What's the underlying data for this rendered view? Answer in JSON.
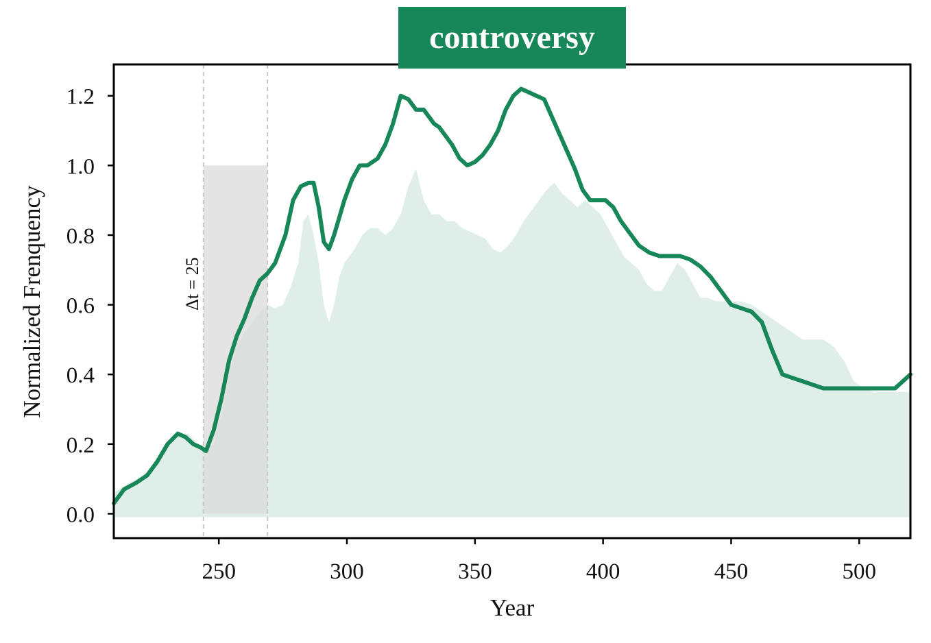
{
  "chart_data": {
    "type": "line",
    "title": "controversy",
    "xlabel": "Year",
    "ylabel": "Normalized Frenquency",
    "xlim": [
      209,
      520
    ],
    "ylim": [
      -0.07,
      1.29
    ],
    "x_ticks": [
      250,
      300,
      350,
      400,
      450,
      500
    ],
    "y_ticks": [
      "0.0",
      "0.2",
      "0.4",
      "0.6",
      "0.8",
      "1.0",
      "1.2"
    ],
    "grid": false,
    "colors": {
      "line": "#17875a",
      "area": "#dfeee8",
      "window": "#d9d9d9",
      "dashed": "#c8c8c8",
      "title_bg": "#17875a"
    },
    "window": {
      "x_start": 244,
      "x_end": 269,
      "y_top": 1.0,
      "label": "Δt = 25"
    },
    "series": [
      {
        "style": "line",
        "x": [
          209,
          213,
          218,
          222,
          226,
          230,
          234,
          237,
          240,
          243,
          245,
          248,
          251,
          254,
          257,
          260,
          263,
          266,
          269,
          272,
          276,
          279,
          282,
          285,
          287,
          289,
          291,
          293,
          295,
          297,
          299,
          302,
          305,
          308,
          312,
          315,
          318,
          321,
          324,
          327,
          330,
          332,
          334,
          336,
          338,
          341,
          344,
          347,
          350,
          353,
          356,
          359,
          362,
          365,
          368,
          371,
          374,
          377,
          380,
          383,
          386,
          389,
          392,
          395,
          398,
          401,
          404,
          407,
          410,
          414,
          418,
          422,
          426,
          430,
          434,
          438,
          442,
          446,
          450,
          454,
          458,
          462,
          466,
          470,
          474,
          478,
          482,
          486,
          490,
          494,
          498,
          502,
          506,
          510,
          514,
          520
        ],
        "values": [
          0.03,
          0.07,
          0.09,
          0.11,
          0.15,
          0.2,
          0.23,
          0.22,
          0.2,
          0.19,
          0.18,
          0.24,
          0.33,
          0.44,
          0.51,
          0.56,
          0.62,
          0.67,
          0.69,
          0.72,
          0.8,
          0.9,
          0.94,
          0.95,
          0.95,
          0.88,
          0.78,
          0.76,
          0.8,
          0.85,
          0.9,
          0.96,
          1.0,
          1.0,
          1.02,
          1.06,
          1.12,
          1.2,
          1.19,
          1.16,
          1.16,
          1.14,
          1.12,
          1.11,
          1.09,
          1.06,
          1.02,
          1.0,
          1.01,
          1.03,
          1.06,
          1.1,
          1.16,
          1.2,
          1.22,
          1.21,
          1.2,
          1.19,
          1.14,
          1.09,
          1.04,
          0.99,
          0.93,
          0.9,
          0.9,
          0.9,
          0.88,
          0.84,
          0.81,
          0.77,
          0.75,
          0.74,
          0.74,
          0.74,
          0.73,
          0.71,
          0.68,
          0.64,
          0.6,
          0.59,
          0.58,
          0.55,
          0.47,
          0.4,
          0.39,
          0.38,
          0.37,
          0.36,
          0.36,
          0.36,
          0.36,
          0.36,
          0.36,
          0.36,
          0.36,
          0.4
        ]
      },
      {
        "style": "area",
        "x": [
          209,
          213,
          218,
          222,
          226,
          230,
          234,
          238,
          242,
          245,
          248,
          251,
          254,
          257,
          260,
          263,
          266,
          269,
          272,
          275,
          278,
          281,
          283,
          285,
          287,
          289,
          291,
          293,
          295,
          297,
          299,
          301,
          303,
          306,
          309,
          312,
          315,
          318,
          321,
          324,
          327,
          330,
          333,
          336,
          339,
          342,
          345,
          348,
          351,
          354,
          357,
          360,
          363,
          366,
          369,
          372,
          375,
          378,
          381,
          384,
          387,
          390,
          393,
          396,
          399,
          402,
          405,
          408,
          411,
          414,
          417,
          420,
          423,
          426,
          429,
          432,
          435,
          438,
          441,
          444,
          447,
          450,
          454,
          458,
          462,
          466,
          470,
          474,
          478,
          482,
          486,
          490,
          494,
          498,
          502,
          506,
          510,
          514,
          520
        ],
        "values": [
          0.06,
          0.08,
          0.1,
          0.12,
          0.15,
          0.19,
          0.23,
          0.23,
          0.2,
          0.19,
          0.2,
          0.28,
          0.4,
          0.48,
          0.52,
          0.55,
          0.58,
          0.6,
          0.59,
          0.6,
          0.65,
          0.72,
          0.84,
          0.86,
          0.8,
          0.72,
          0.6,
          0.55,
          0.6,
          0.68,
          0.72,
          0.74,
          0.76,
          0.8,
          0.82,
          0.82,
          0.8,
          0.82,
          0.86,
          0.94,
          0.99,
          0.9,
          0.86,
          0.86,
          0.84,
          0.84,
          0.82,
          0.81,
          0.8,
          0.79,
          0.76,
          0.75,
          0.77,
          0.8,
          0.84,
          0.87,
          0.9,
          0.93,
          0.95,
          0.92,
          0.9,
          0.88,
          0.9,
          0.88,
          0.86,
          0.82,
          0.78,
          0.74,
          0.72,
          0.7,
          0.66,
          0.64,
          0.64,
          0.68,
          0.72,
          0.7,
          0.66,
          0.62,
          0.62,
          0.61,
          0.61,
          0.61,
          0.61,
          0.6,
          0.58,
          0.56,
          0.54,
          0.52,
          0.5,
          0.5,
          0.5,
          0.48,
          0.44,
          0.38,
          0.36,
          0.35,
          0.35,
          0.35,
          0.35
        ]
      }
    ]
  }
}
